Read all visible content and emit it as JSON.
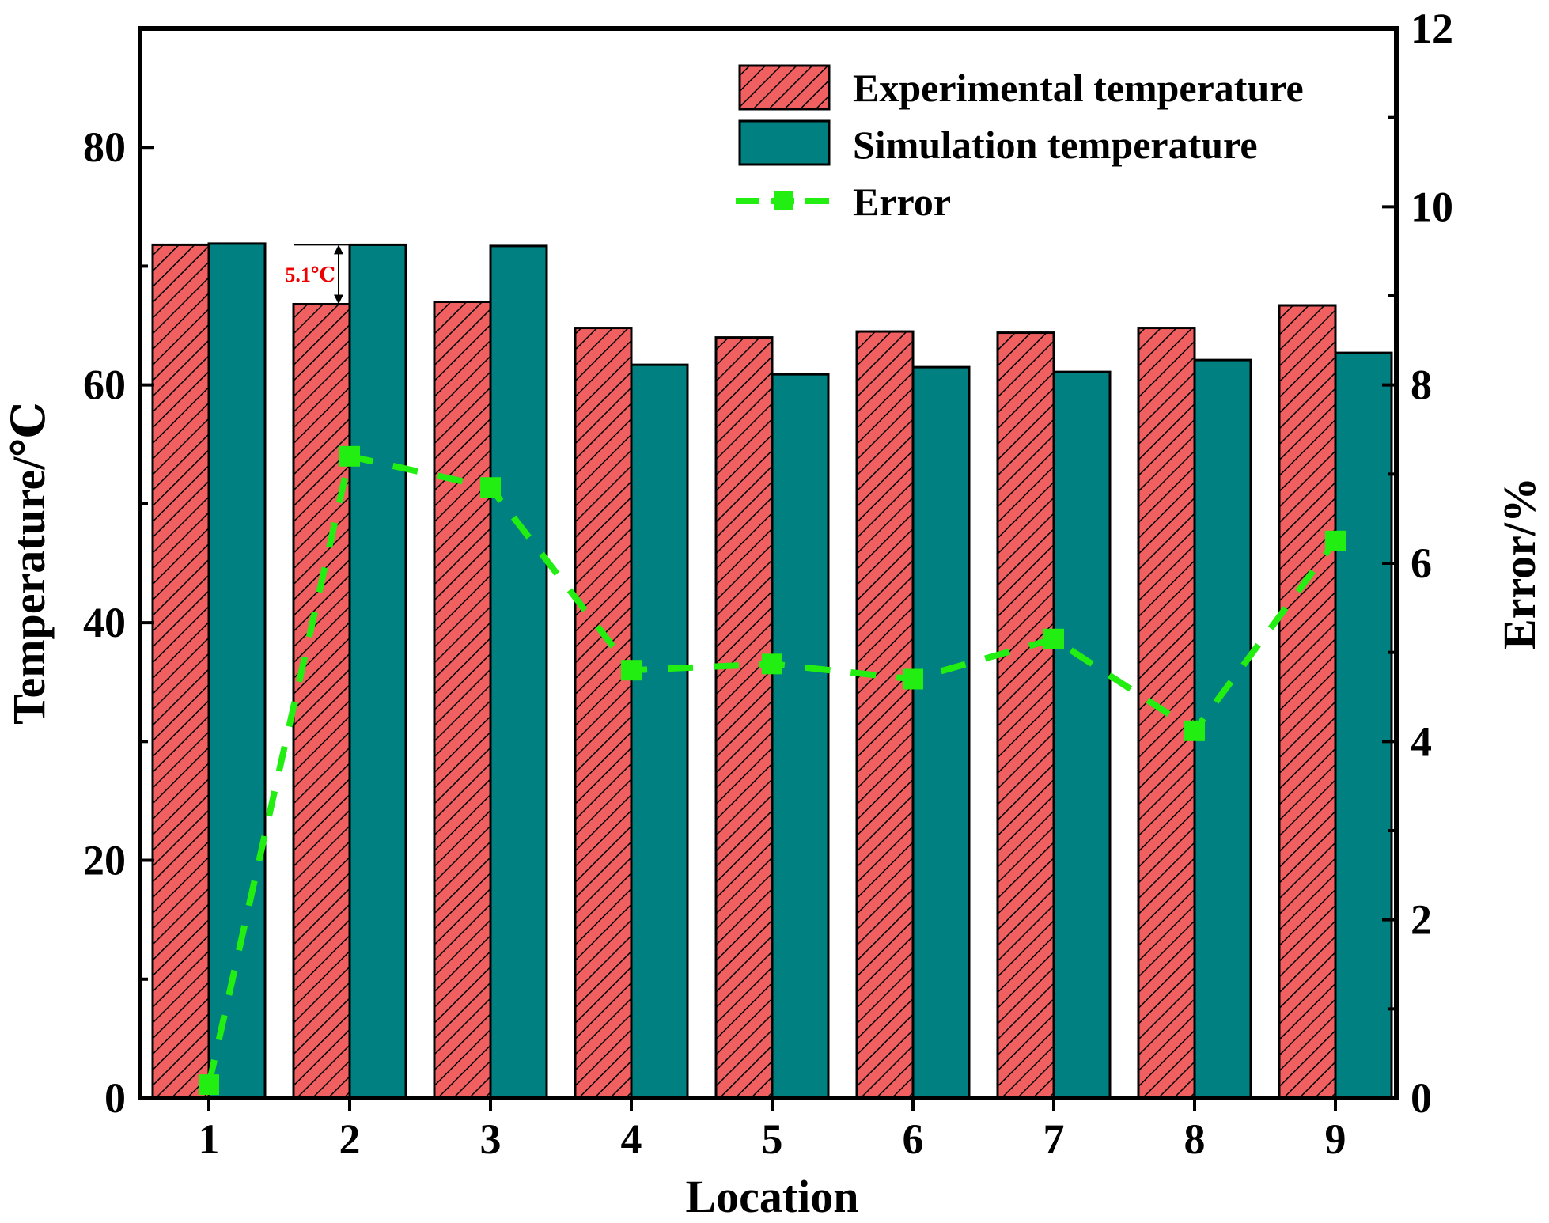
{
  "chart_data": {
    "type": "bar",
    "categories": [
      "1",
      "2",
      "3",
      "4",
      "5",
      "6",
      "7",
      "8",
      "9"
    ],
    "series": [
      {
        "name": "Experimental temperature",
        "axis": "left",
        "kind": "bar",
        "values": [
          71.8,
          66.8,
          67.0,
          64.8,
          64.0,
          64.5,
          64.4,
          64.8,
          66.7
        ]
      },
      {
        "name": "Simulation temperature",
        "axis": "left",
        "kind": "bar",
        "values": [
          71.9,
          71.8,
          71.7,
          61.7,
          60.9,
          61.5,
          61.1,
          62.1,
          62.7
        ]
      },
      {
        "name": "Error",
        "axis": "right",
        "kind": "line",
        "values": [
          0.15,
          7.2,
          6.85,
          4.8,
          4.87,
          4.7,
          5.15,
          4.12,
          6.25
        ]
      }
    ],
    "xlabel": "Location",
    "ylabel": "Temperature/℃",
    "y2label": "Error/%",
    "ylim": [
      0,
      90
    ],
    "y2lim": [
      0,
      12
    ],
    "yticks": [
      0,
      20,
      40,
      60,
      80
    ],
    "y2ticks": [
      0,
      2,
      4,
      6,
      8,
      10,
      12
    ],
    "annotation": {
      "text": "5.1℃",
      "location": "2"
    },
    "legend_position": "top-right"
  },
  "colors": {
    "experimental": "#f06060",
    "simulation": "#008080",
    "error": "#22ee11",
    "annotation": "#ee0000"
  }
}
